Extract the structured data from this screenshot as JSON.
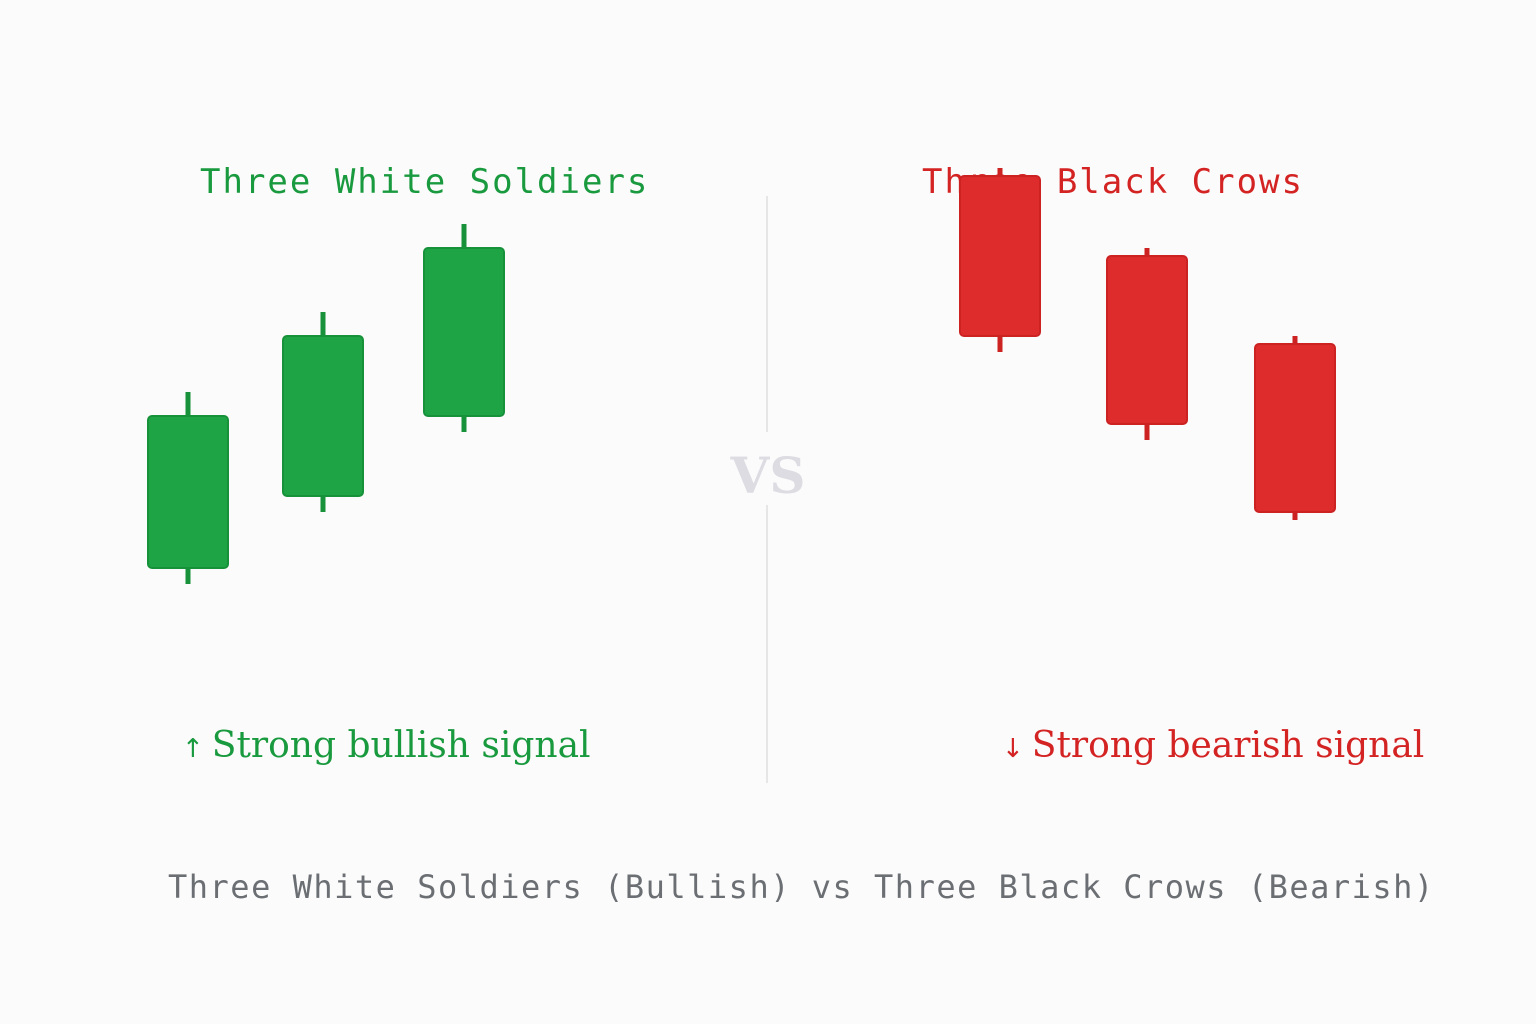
{
  "colors": {
    "bullish": "#1ea445",
    "bullish_border": "#17913a",
    "bearish": "#de2c2c",
    "bearish_border": "#cc2222",
    "divider": "#e6e6e6",
    "caption": "#6b6f73"
  },
  "left_panel": {
    "title": "Three White Soldiers",
    "signal_arrow": "↑",
    "signal_text": "Strong bullish signal"
  },
  "right_panel": {
    "title": "Three Black Crows",
    "signal_arrow": "↓",
    "signal_text": "Strong bearish signal"
  },
  "vs_label": "VS",
  "caption": "Three White Soldiers (Bullish) vs Three Black Crows (Bearish)",
  "candles": {
    "bullish": [
      {
        "open": 2.0,
        "close": 3.9,
        "high": 4.2,
        "low": 1.8
      },
      {
        "open": 2.9,
        "close": 4.9,
        "high": 5.2,
        "low": 2.7
      },
      {
        "open": 3.9,
        "close": 6.0,
        "high": 6.3,
        "low": 3.7
      }
    ],
    "bearish": [
      {
        "open": 6.9,
        "close": 4.9,
        "high": 7.0,
        "low": 4.7
      },
      {
        "open": 5.9,
        "close": 3.8,
        "high": 6.0,
        "low": 3.6
      },
      {
        "open": 4.8,
        "close": 2.7,
        "high": 4.9,
        "low": 2.6
      }
    ]
  }
}
